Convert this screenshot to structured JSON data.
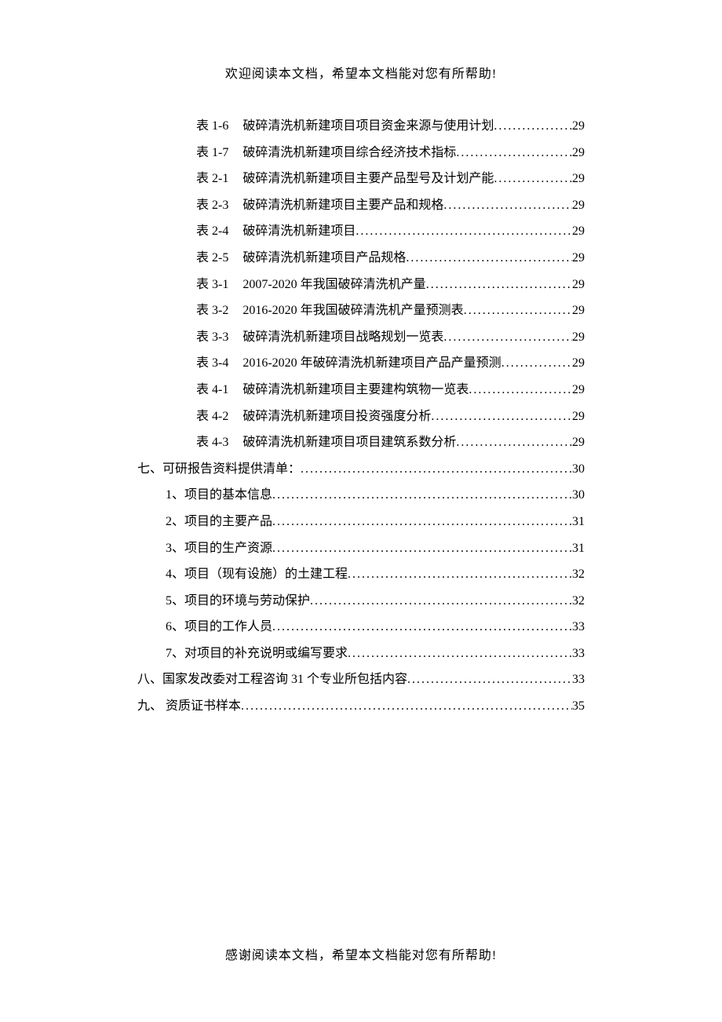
{
  "header_note": "欢迎阅读本文档，希望本文档能对您有所帮助!",
  "footer_note": "感谢阅读本文档，希望本文档能对您有所帮助!",
  "toc": {
    "tables": [
      {
        "label": "表 1-6",
        "title": "破碎清洗机新建项目项目资金来源与使用计划",
        "page": "29"
      },
      {
        "label": "表 1-7",
        "title": "破碎清洗机新建项目综合经济技术指标",
        "page": "29"
      },
      {
        "label": "表 2-1",
        "title": "破碎清洗机新建项目主要产品型号及计划产能",
        "page": "29"
      },
      {
        "label": "表 2-3",
        "title": "破碎清洗机新建项目主要产品和规格",
        "page": "29"
      },
      {
        "label": "表 2-4",
        "title": "破碎清洗机新建项目",
        "page": "29"
      },
      {
        "label": "表 2-5",
        "title": "破碎清洗机新建项目产品规格",
        "page": "29"
      },
      {
        "label": "表 3-1",
        "title": "2007-2020 年我国破碎清洗机产量",
        "page": "29"
      },
      {
        "label": "表 3-2",
        "title": "2016-2020 年我国破碎清洗机产量预测表",
        "page": "29"
      },
      {
        "label": "表 3-3",
        "title": "破碎清洗机新建项目战略规划一览表",
        "page": "29"
      },
      {
        "label": "表 3-4",
        "title": "2016-2020 年破碎清洗机新建项目产品产量预测",
        "page": "29"
      },
      {
        "label": "表 4-1",
        "title": "破碎清洗机新建项目主要建构筑物一览表",
        "page": "29"
      },
      {
        "label": "表 4-2",
        "title": "破碎清洗机新建项目投资强度分析",
        "page": "29"
      },
      {
        "label": "表 4-3",
        "title": "破碎清洗机新建项目项目建筑系数分析",
        "page": "29"
      }
    ],
    "section7": {
      "label": "七、可研报告资料提供清单：",
      "page": "30"
    },
    "section7_items": [
      {
        "label": "1、项目的基本信息",
        "page": "30"
      },
      {
        "label": "2、项目的主要产品",
        "page": "31"
      },
      {
        "label": "3、项目的生产资源",
        "page": "31"
      },
      {
        "label": "4、项目（现有设施）的土建工程",
        "page": "32"
      },
      {
        "label": "5、项目的环境与劳动保护",
        "page": "32"
      },
      {
        "label": "6、项目的工作人员",
        "page": "33"
      },
      {
        "label": "7、对项目的补充说明或编写要求",
        "page": "33"
      }
    ],
    "section8": {
      "label": "八、国家发改委对工程咨询 31 个专业所包括内容",
      "page": "33"
    },
    "section9": {
      "label": "九、 资质证书样本",
      "page": "35"
    }
  }
}
